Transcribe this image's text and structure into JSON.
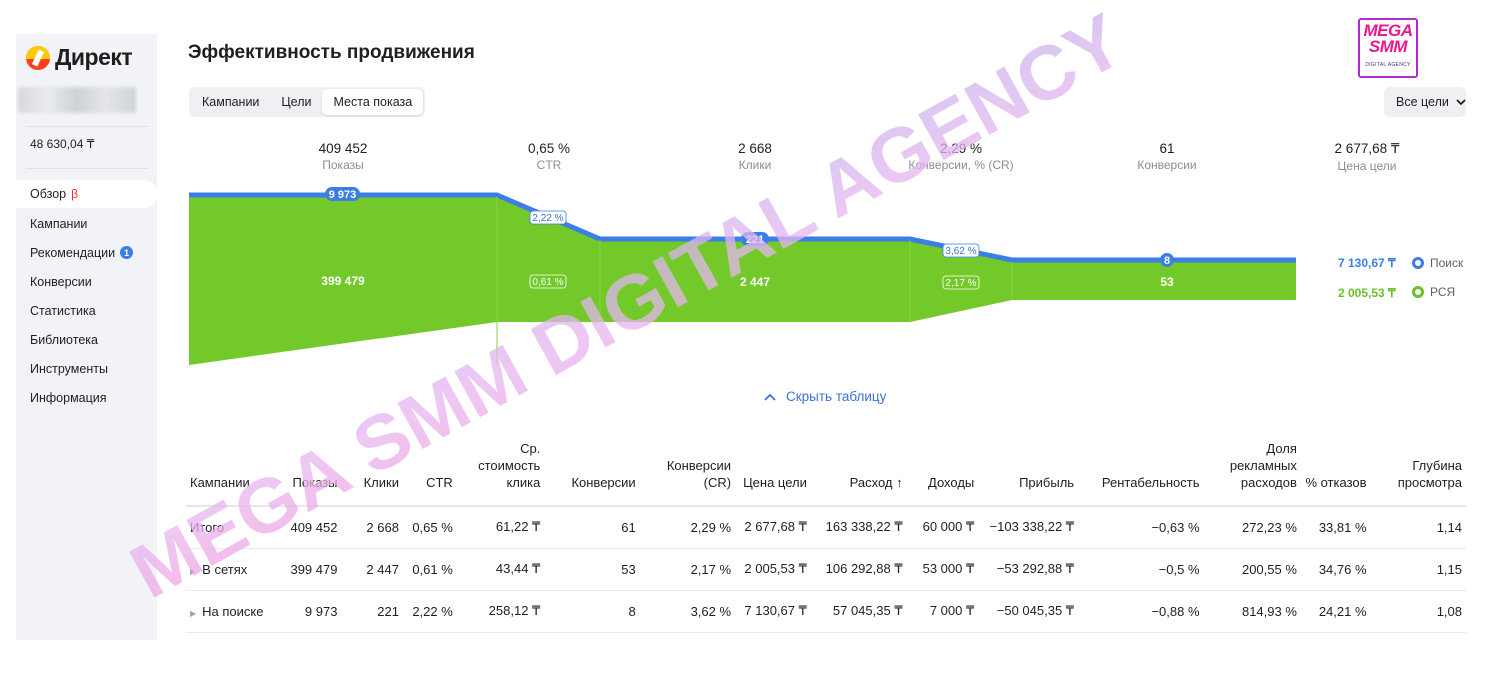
{
  "sidebar": {
    "logo_text": "Директ",
    "balance": "48 630,04 ₸",
    "items": [
      {
        "label": "Обзор",
        "suffix": "β"
      },
      {
        "label": "Кампании"
      },
      {
        "label": "Рекомендации",
        "badge": "1"
      },
      {
        "label": "Конверсии"
      },
      {
        "label": "Статистика"
      },
      {
        "label": "Библиотека"
      },
      {
        "label": "Инструменты"
      },
      {
        "label": "Информация"
      }
    ]
  },
  "header": {
    "title": "Эффективность продвижения",
    "tabs": [
      "Кампании",
      "Цели",
      "Места показа"
    ],
    "active_tab": "Места показа",
    "goal_select": "Все цели"
  },
  "metrics": [
    {
      "value": "409 452",
      "label": "Показы"
    },
    {
      "value": "0,65 %",
      "label": "CTR"
    },
    {
      "value": "2 668",
      "label": "Клики"
    },
    {
      "value": "2,29 %",
      "label": "Конверсии, % (CR)"
    },
    {
      "value": "61",
      "label": "Конверсии"
    },
    {
      "value": "2 677,68 ₸",
      "label": "Цена цели"
    }
  ],
  "funnel": {
    "search": {
      "impressions": "9 973",
      "ctr": "2,22 %",
      "clicks": "221",
      "cr": "3,62 %",
      "conversions": "8",
      "goal_cost": "7 130,67 ₸",
      "legend": "Поиск"
    },
    "networks": {
      "impressions": "399 479",
      "ctr": "0,61 %",
      "clicks": "2 447",
      "cr": "2,17 %",
      "conversions": "53",
      "goal_cost": "2 005,53 ₸",
      "legend": "РСЯ"
    }
  },
  "hide_table_label": "Скрыть таблицу",
  "table": {
    "headers": [
      "Кампании",
      "Показы",
      "Клики",
      "CTR",
      "Ср. стоимость клика",
      "Конверсии",
      "Конверсии (CR)",
      "Цена цели",
      "Расход ↑",
      "Доходы",
      "Прибыль",
      "Рентабельность",
      "Доля рекламных расходов",
      "% отказов",
      "Глубина просмотра"
    ],
    "rows": [
      [
        "Итого",
        "409 452",
        "2 668",
        "0,65 %",
        "61,22 ₸",
        "61",
        "2,29 %",
        "2 677,68 ₸",
        "163 338,22 ₸",
        "60 000 ₸",
        "−103 338,22 ₸",
        "−0,63 %",
        "272,23 %",
        "33,81 %",
        "1,14"
      ],
      [
        "В сетях",
        "399 479",
        "2 447",
        "0,61 %",
        "43,44 ₸",
        "53",
        "2,17 %",
        "2 005,53 ₸",
        "106 292,88 ₸",
        "53 000 ₸",
        "−53 292,88 ₸",
        "−0,5 %",
        "200,55 %",
        "34,76 %",
        "1,15"
      ],
      [
        "На поиске",
        "9 973",
        "221",
        "2,22 %",
        "258,12 ₸",
        "8",
        "3,62 %",
        "7 130,67 ₸",
        "57 045,35 ₸",
        "7 000 ₸",
        "−50 045,35 ₸",
        "−0,88 %",
        "814,93 %",
        "24,21 %",
        "1,08"
      ]
    ]
  },
  "watermark": {
    "text": "MEGA SMM DIGITAL AGENCY",
    "brand_top": "MEGA",
    "brand_mid": "SMM",
    "brand_bottom": "DIGITAL AGENCY"
  },
  "colors": {
    "search": "#3a7ee6",
    "networks": "#73c92a",
    "link": "#3a72d4",
    "watermark": "#c9a6e8"
  }
}
